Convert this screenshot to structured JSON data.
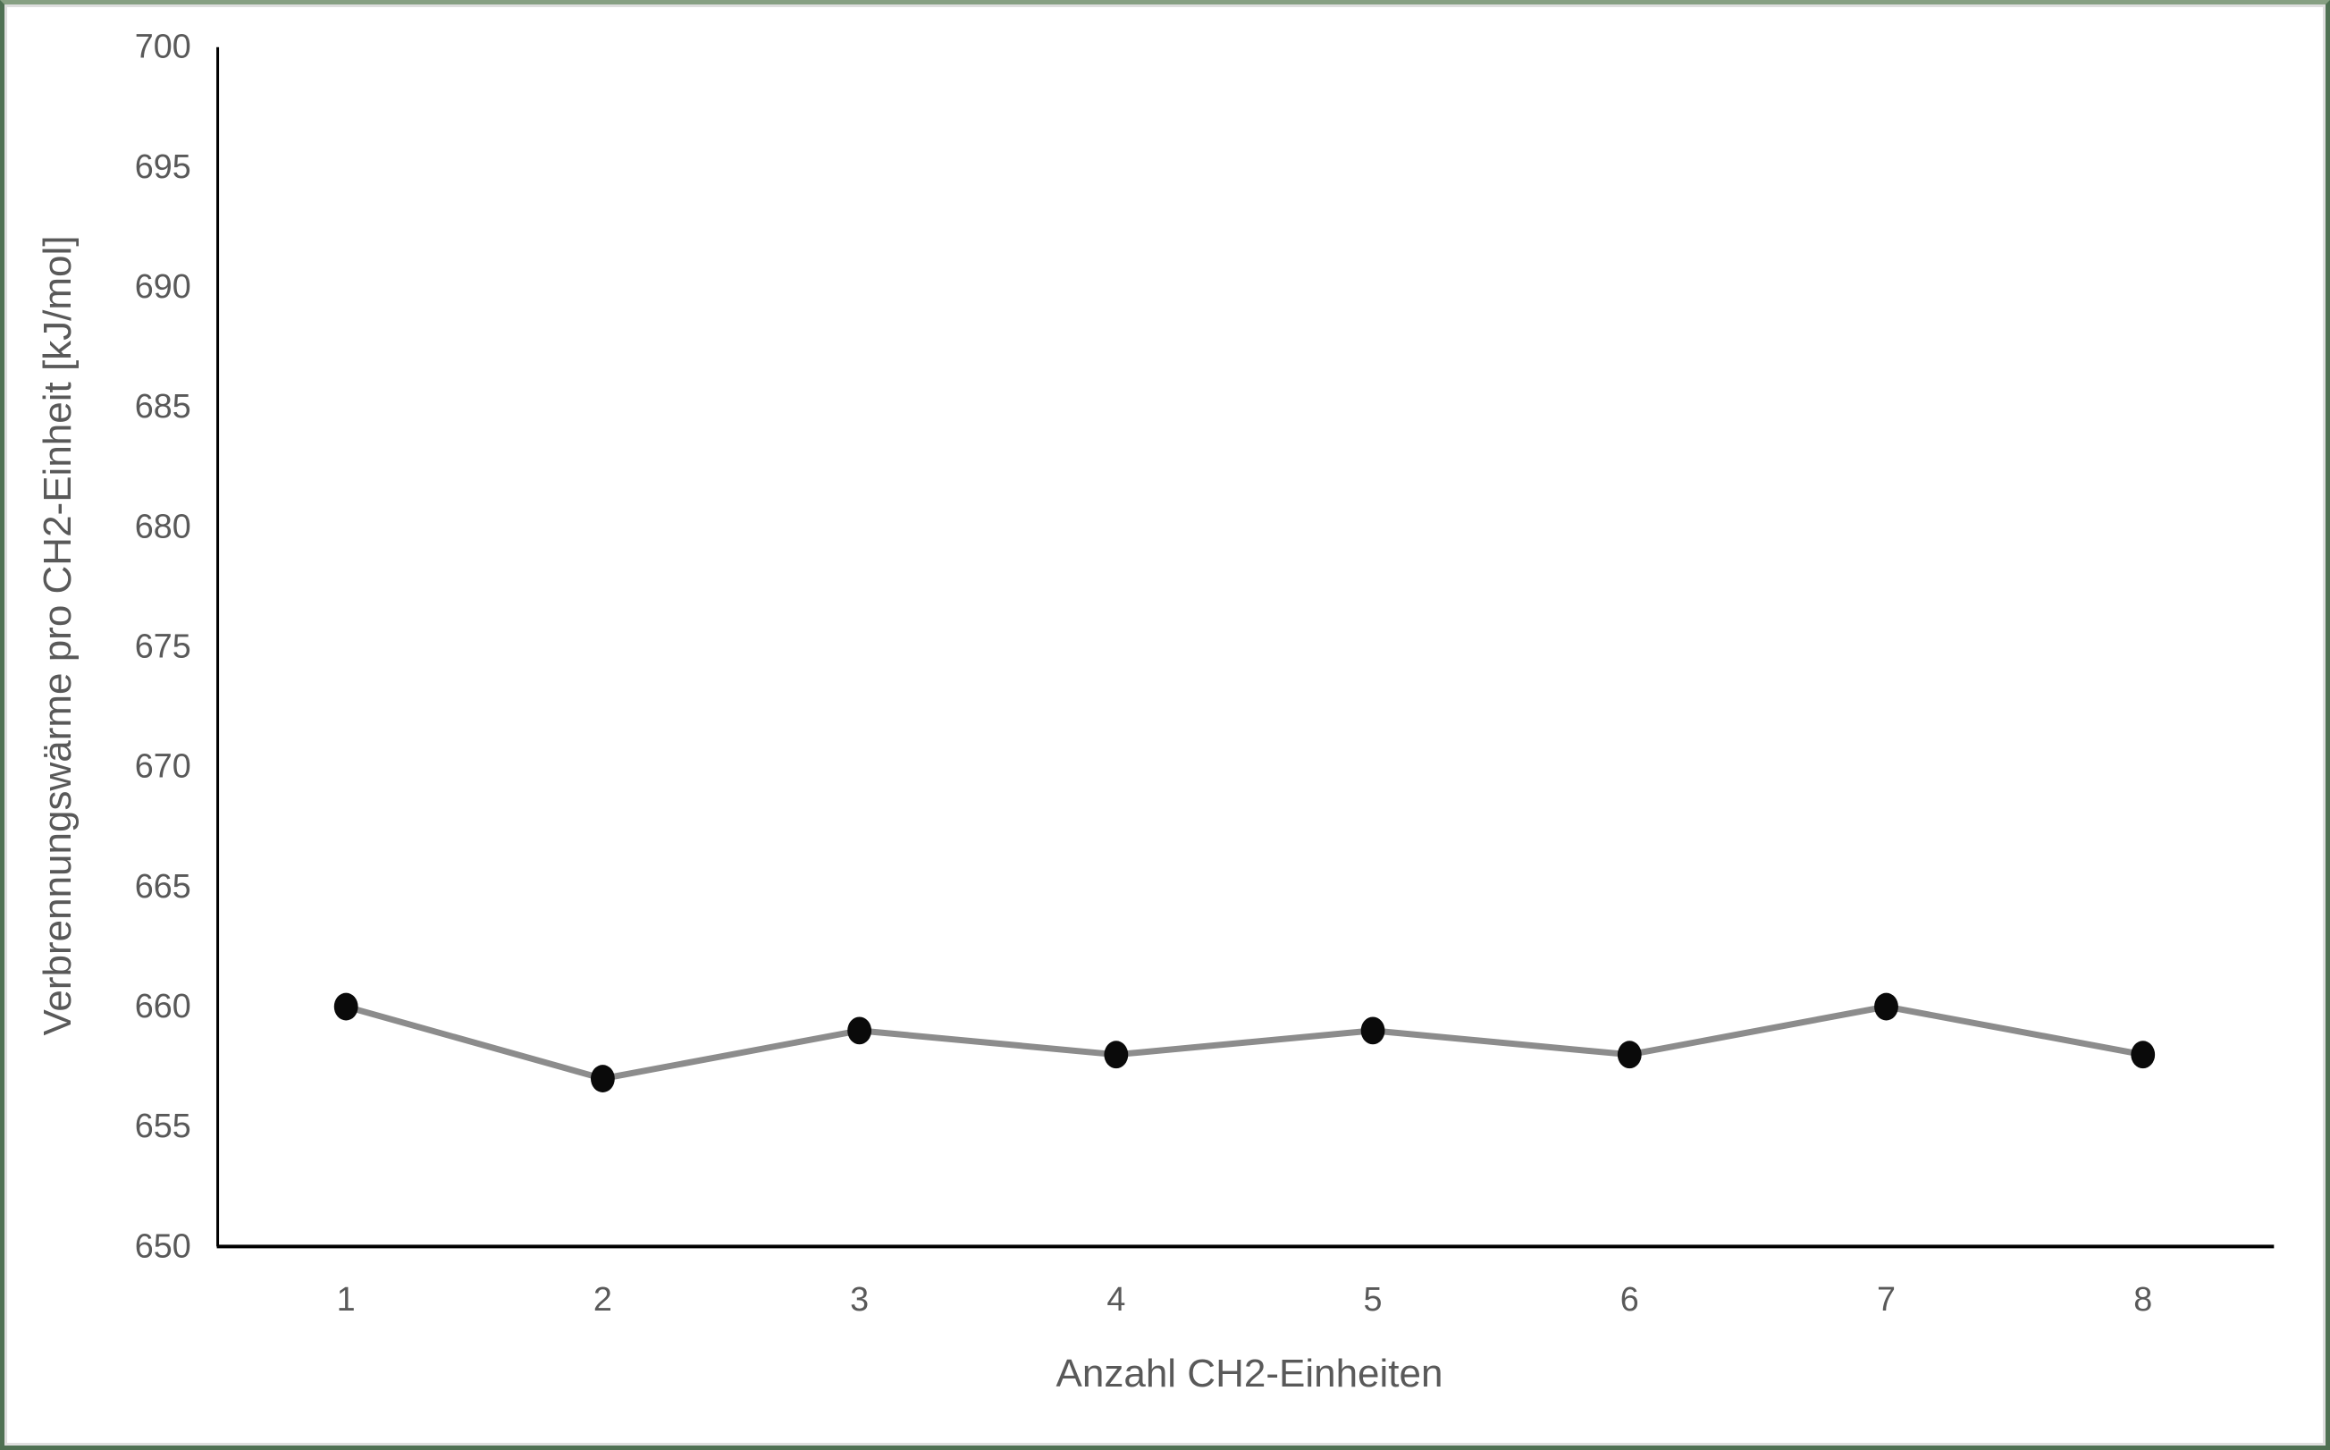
{
  "chart_data": {
    "type": "line",
    "title": "",
    "xlabel": "Anzahl CH2-Einheiten",
    "ylabel": "Verbrennungswärme pro CH2-Einheit [kJ/mol]",
    "categories": [
      "1",
      "2",
      "3",
      "4",
      "5",
      "6",
      "7",
      "8"
    ],
    "values": [
      660,
      657,
      659,
      658,
      659,
      658,
      660,
      658
    ],
    "ylim": [
      650,
      700
    ],
    "yticks": [
      650,
      655,
      660,
      665,
      670,
      675,
      680,
      685,
      690,
      695,
      700
    ],
    "grid": false,
    "legend_position": "none",
    "line_color": "#8c8c8c",
    "marker_color": "#0a0a0a",
    "axis_color": "#000000",
    "tick_text_color": "#595959"
  },
  "frame": {
    "border_color": "#4f7153",
    "border_top_color": "#87a083",
    "inner_edge_color": "#dedede",
    "background_color": "#ffffff"
  }
}
